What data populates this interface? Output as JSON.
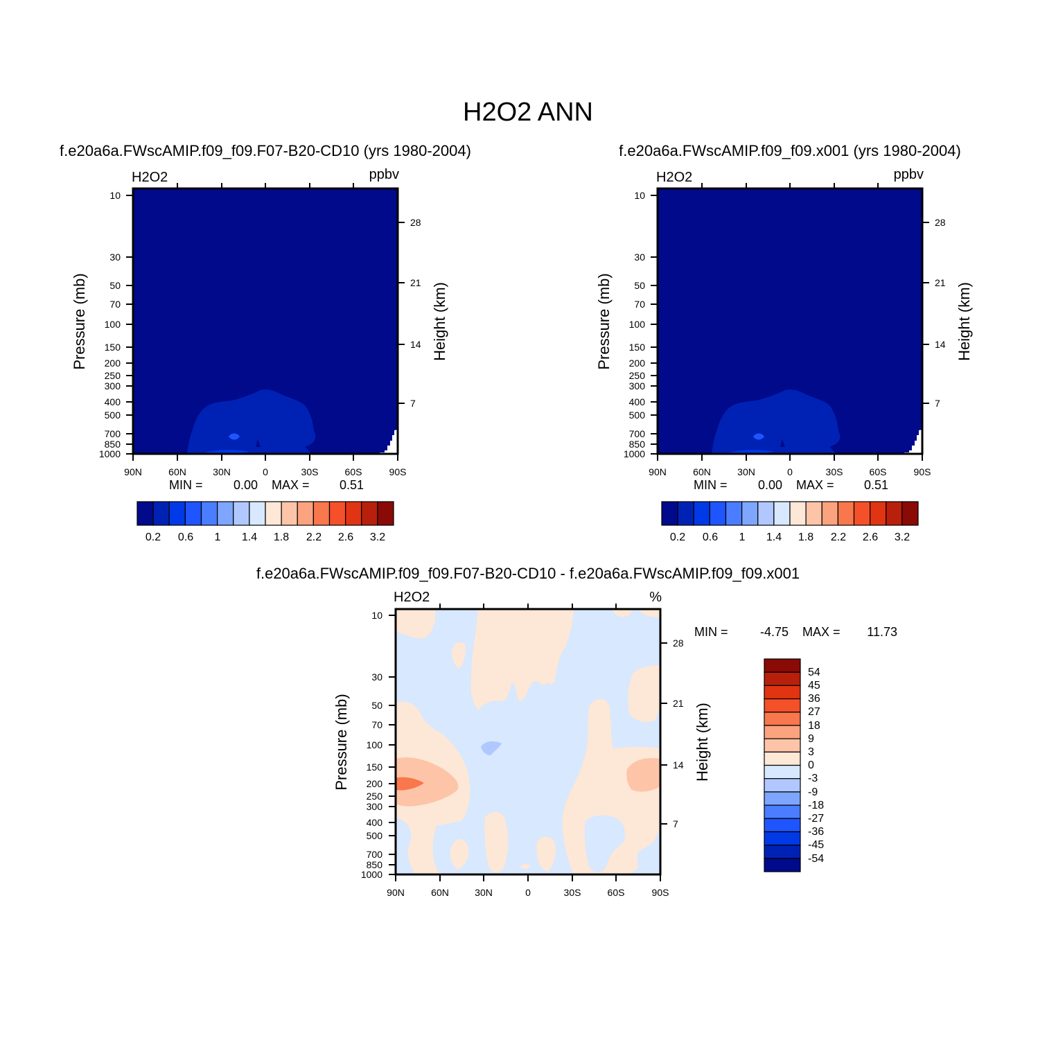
{
  "figure_title": "H2O2 ANN",
  "chart_data": [
    {
      "type": "heatmap",
      "title": "f.e20a6a.FWscAMIP.f09_f09.F07-B20-CD10 (yrs 1980-2004)",
      "variable": "H2O2",
      "units": "ppbv",
      "xlabel": "",
      "ylabel": "Pressure (mb)",
      "ylabel_right": "Height (km)",
      "x_tick_labels": [
        "90N",
        "60N",
        "30N",
        "0",
        "30S",
        "60S",
        "90S"
      ],
      "y_tick_labels": [
        "10",
        "30",
        "50",
        "70",
        "100",
        "150",
        "200",
        "250",
        "300",
        "400",
        "500",
        "700",
        "850",
        "1000"
      ],
      "height_tick_labels": [
        "28",
        "21",
        "14",
        "7"
      ],
      "ylim": [
        1000,
        10
      ],
      "y_scale": "log",
      "min_label": "MIN =",
      "min_value": "0.00",
      "max_label": "MAX =",
      "max_value": "0.51",
      "colorbar_tick_labels": [
        "0.2",
        "0.6",
        "1",
        "1.4",
        "1.8",
        "2.2",
        "2.6",
        "3.2"
      ],
      "colorbar_orientation": "horizontal"
    },
    {
      "type": "heatmap",
      "title": "f.e20a6a.FWscAMIP.f09_f09.x001 (yrs 1980-2004)",
      "variable": "H2O2",
      "units": "ppbv",
      "xlabel": "",
      "ylabel": "Pressure (mb)",
      "ylabel_right": "Height (km)",
      "x_tick_labels": [
        "90N",
        "60N",
        "30N",
        "0",
        "30S",
        "60S",
        "90S"
      ],
      "y_tick_labels": [
        "10",
        "30",
        "50",
        "70",
        "100",
        "150",
        "200",
        "250",
        "300",
        "400",
        "500",
        "700",
        "850",
        "1000"
      ],
      "height_tick_labels": [
        "28",
        "21",
        "14",
        "7"
      ],
      "ylim": [
        1000,
        10
      ],
      "y_scale": "log",
      "min_label": "MIN =",
      "min_value": "0.00",
      "max_label": "MAX =",
      "max_value": "0.51",
      "colorbar_tick_labels": [
        "0.2",
        "0.6",
        "1",
        "1.4",
        "1.8",
        "2.2",
        "2.6",
        "3.2"
      ],
      "colorbar_orientation": "horizontal"
    },
    {
      "type": "heatmap",
      "title": "f.e20a6a.FWscAMIP.f09_f09.F07-B20-CD10 - f.e20a6a.FWscAMIP.f09_f09.x001",
      "variable": "H2O2",
      "units": "%",
      "xlabel": "",
      "ylabel": "Pressure (mb)",
      "ylabel_right": "Height (km)",
      "x_tick_labels": [
        "90N",
        "60N",
        "30N",
        "0",
        "30S",
        "60S",
        "90S"
      ],
      "y_tick_labels": [
        "10",
        "30",
        "50",
        "70",
        "100",
        "150",
        "200",
        "250",
        "300",
        "400",
        "500",
        "700",
        "850",
        "1000"
      ],
      "height_tick_labels": [
        "28",
        "21",
        "14",
        "7"
      ],
      "ylim": [
        1000,
        10
      ],
      "y_scale": "log",
      "min_label": "MIN =",
      "min_value": "-4.75",
      "max_label": "MAX =",
      "max_value": "11.73",
      "colorbar_tick_labels": [
        "54",
        "45",
        "36",
        "27",
        "18",
        "9",
        "3",
        "0",
        "-3",
        "-9",
        "-18",
        "-27",
        "-36",
        "-45",
        "-54"
      ],
      "colorbar_orientation": "vertical"
    }
  ],
  "colors": {
    "seq_palette": [
      "#000a8a",
      "#0022b4",
      "#0039e6",
      "#1f55ff",
      "#4a7dff",
      "#7ea6ff",
      "#b0c8ff",
      "#d7e8ff",
      "#fde7d6",
      "#fdc4a8",
      "#fba27e",
      "#f8774c",
      "#f4502a",
      "#e03412",
      "#b8200b",
      "#8a0a06"
    ],
    "diff_palette_top_down": [
      "#8a0a06",
      "#b8200b",
      "#e03412",
      "#f4502a",
      "#f8774c",
      "#fba27e",
      "#fdc4a8",
      "#fde7d6",
      "#d7e8ff",
      "#b0c8ff",
      "#7ea6ff",
      "#4a7dff",
      "#1f55ff",
      "#0039e6",
      "#0022b4",
      "#000a8a"
    ]
  }
}
